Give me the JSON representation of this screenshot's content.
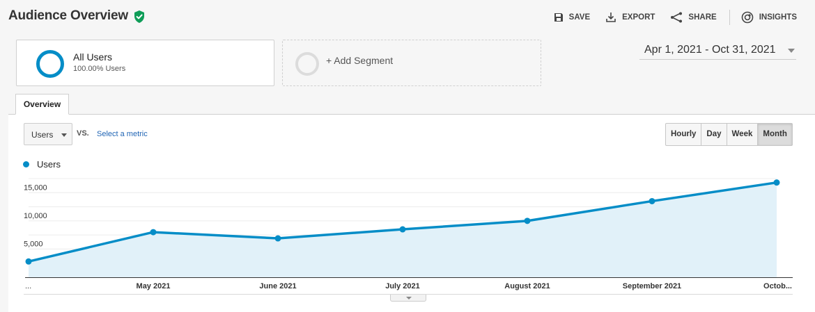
{
  "header": {
    "title": "Audience Overview",
    "toolbar": {
      "save_label": "SAVE",
      "export_label": "EXPORT",
      "share_label": "SHARE",
      "insights_label": "INSIGHTS"
    }
  },
  "segments": {
    "active": {
      "name": "All Users",
      "percent": "100.00% Users"
    },
    "add_label": "+ Add Segment"
  },
  "date_range": "Apr 1, 2021 - Oct 31, 2021",
  "tabs": {
    "overview": "Overview"
  },
  "controls": {
    "metric": "Users",
    "vs": "VS.",
    "select_metric": "Select a metric",
    "granularity": [
      "Hourly",
      "Day",
      "Week",
      "Month"
    ],
    "active_granularity": "Month"
  },
  "colors": {
    "series": "#058dc7",
    "fill": "#e1f1f9",
    "brand_check": "#0f9d58"
  },
  "chart_data": {
    "type": "area",
    "series": [
      {
        "name": "Users",
        "values": [
          2800,
          8000,
          6900,
          8500,
          10000,
          13500,
          16800
        ]
      }
    ],
    "x_labels": [
      "...",
      "May 2021",
      "June 2021",
      "July 2021",
      "August 2021",
      "September 2021",
      "Octob..."
    ],
    "y_ticks": [
      "5,000",
      "10,000",
      "15,000"
    ],
    "y_tick_values": [
      5000,
      10000,
      15000
    ],
    "ylim": [
      0,
      17500
    ],
    "grid": true
  }
}
